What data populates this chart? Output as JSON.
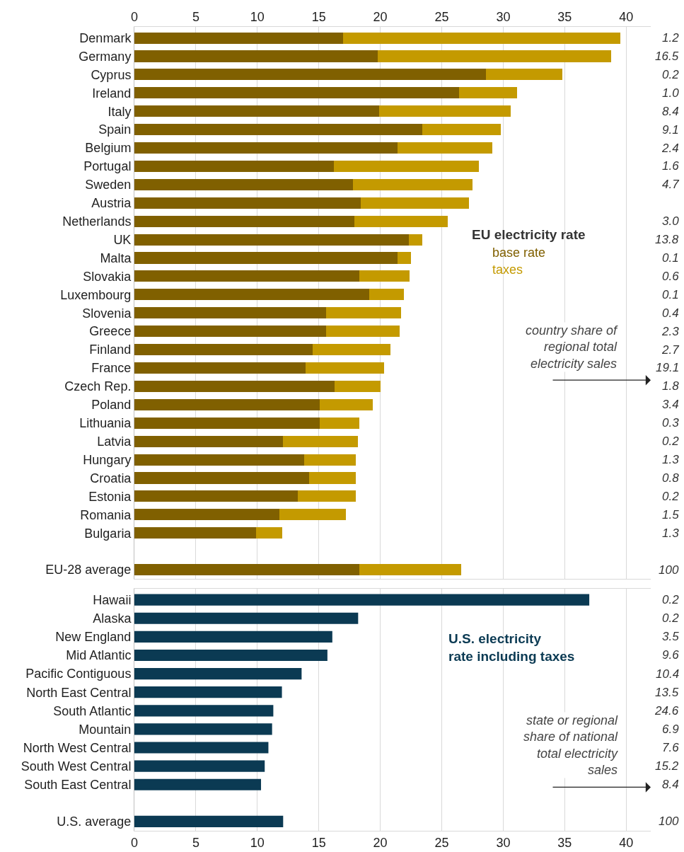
{
  "chart_data": [
    {
      "type": "bar",
      "orientation": "horizontal",
      "stacked": true,
      "grid": "x",
      "legend": "right",
      "legend_title": "EU electricity rate",
      "categories": [
        "Denmark",
        "Germany",
        "Cyprus",
        "Ireland",
        "Italy",
        "Spain",
        "Belgium",
        "Portugal",
        "Sweden",
        "Austria",
        "Netherlands",
        "UK",
        "Malta",
        "Slovakia",
        "Luxembourg",
        "Slovenia",
        "Greece",
        "Finland",
        "France",
        "Czech Rep.",
        "Poland",
        "Lithuania",
        "Latvia",
        "Hungary",
        "Croatia",
        "Estonia",
        "Romania",
        "Bulgaria",
        null,
        "EU-28 average"
      ],
      "y2_categories": [
        "1.2",
        "16.5",
        "0.2",
        "1.0",
        "8.4",
        "9.1",
        "2.4",
        "1.6",
        "4.7",
        null,
        "3.0",
        "13.8",
        "0.1",
        "0.6",
        "0.1",
        "0.4",
        "2.3",
        "2.7",
        "19.1",
        "1.8",
        "3.4",
        "0.3",
        "0.2",
        "1.3",
        "0.8",
        "0.2",
        "1.5",
        "1.3",
        null,
        "100"
      ],
      "xlim": [
        0,
        42
      ],
      "xticks": [
        0,
        5,
        10,
        15,
        20,
        25,
        30,
        35,
        40
      ],
      "series": [
        {
          "name": "base rate",
          "color": "#806000",
          "values": [
            17.0,
            19.8,
            28.6,
            26.4,
            19.9,
            23.4,
            21.4,
            16.2,
            17.8,
            18.4,
            17.9,
            22.3,
            21.4,
            18.3,
            19.1,
            15.6,
            15.6,
            14.5,
            13.9,
            16.3,
            15.1,
            15.1,
            12.1,
            13.8,
            14.2,
            13.3,
            11.8,
            9.9,
            null,
            18.3
          ]
        },
        {
          "name": "taxes",
          "color": "#c49a00",
          "values": [
            22.5,
            19.0,
            6.2,
            4.7,
            10.7,
            6.4,
            7.7,
            11.8,
            9.7,
            8.8,
            7.6,
            1.1,
            1.1,
            4.1,
            2.8,
            6.1,
            6.0,
            6.3,
            6.4,
            3.7,
            4.3,
            3.2,
            6.1,
            4.2,
            3.8,
            4.7,
            5.4,
            2.1,
            null,
            8.3
          ]
        }
      ],
      "annotations": [
        "country share of regional total electricity sales"
      ]
    },
    {
      "type": "bar",
      "orientation": "horizontal",
      "grid": "x",
      "legend_title": "U.S. electricity rate including taxes",
      "categories": [
        "Hawaii",
        "Alaska",
        "New England",
        "Mid Atlantic",
        "Pacific Contiguous",
        "North East Central",
        "South Atlantic",
        "Mountain",
        "North West Central",
        "South West Central",
        "South East Central",
        null,
        "U.S. average"
      ],
      "y2_categories": [
        "0.2",
        "0.2",
        "3.5",
        "9.6",
        "10.4",
        "13.5",
        "24.6",
        "6.9",
        "7.6",
        "15.2",
        "8.4",
        null,
        "100"
      ],
      "xlim": [
        0,
        42
      ],
      "xticks": [
        0,
        5,
        10,
        15,
        20,
        25,
        30,
        35,
        40
      ],
      "series": [
        {
          "color": "#0b3a53",
          "values": [
            37.0,
            18.2,
            16.1,
            15.7,
            13.6,
            12.0,
            11.3,
            11.2,
            10.9,
            10.6,
            10.3,
            null,
            12.1
          ]
        }
      ],
      "annotations": [
        "state or regional share of national total electricity sales"
      ]
    }
  ]
}
